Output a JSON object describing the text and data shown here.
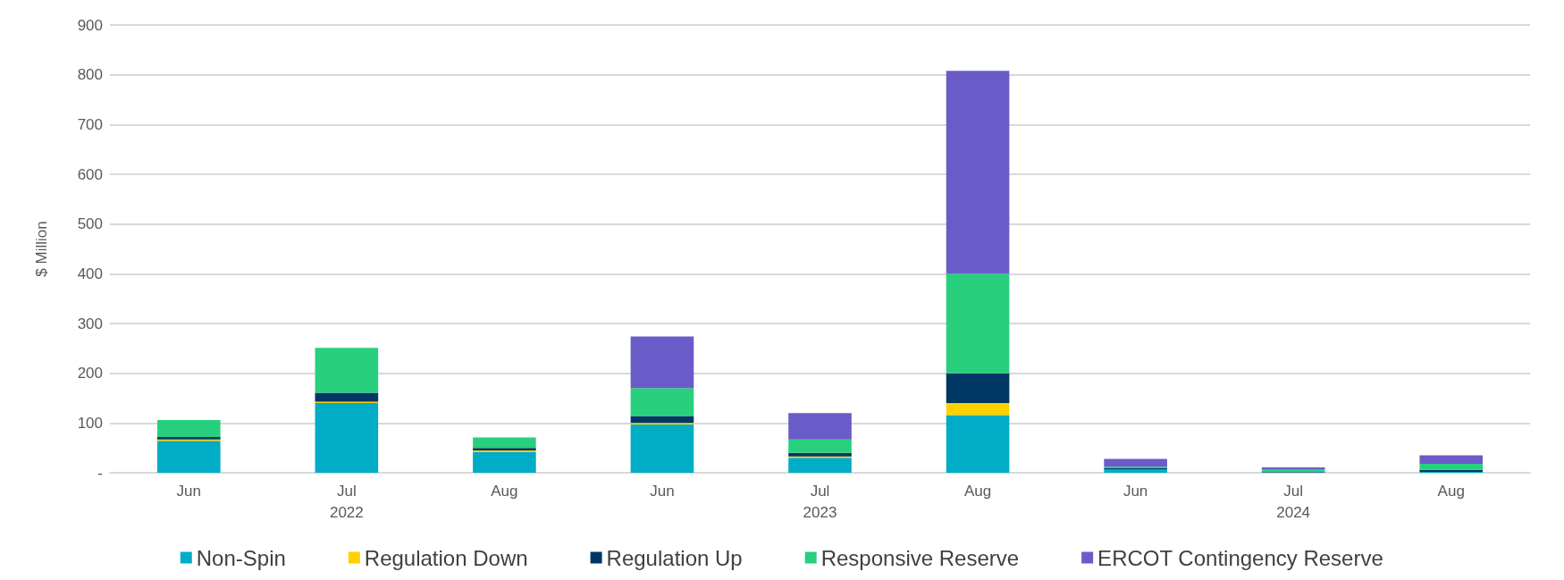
{
  "chart_data": {
    "type": "bar",
    "stacked": true,
    "ylabel": "$ Million",
    "categories": [
      "Jun",
      "Jul\n2022",
      "Aug",
      "Jun",
      "Jul\n2023",
      "Aug",
      "Jun",
      "Jul\n2024",
      "Aug"
    ],
    "series": [
      {
        "name": "Non-Spin",
        "color": "#00acc6",
        "values": [
          64,
          140,
          42,
          97,
          30,
          116,
          7,
          1,
          2
        ]
      },
      {
        "name": "Regulation Down",
        "color": "#ffd100",
        "values": [
          3,
          3,
          3,
          3,
          3,
          24,
          null,
          null,
          null
        ]
      },
      {
        "name": "Regulation Up",
        "color": "#003764",
        "values": [
          5,
          18,
          5,
          14,
          7,
          60,
          2,
          1,
          4
        ]
      },
      {
        "name": "Responsive Reserve",
        "color": "#28d07e",
        "values": [
          34,
          90,
          21,
          56,
          27,
          200,
          3,
          5,
          12
        ]
      },
      {
        "name": "ERCOT Contingency Reserve",
        "color": "#6a5cc8",
        "values": [
          0,
          0,
          0,
          104,
          53,
          408,
          16,
          4,
          17
        ]
      }
    ],
    "ylim": [
      0,
      900
    ],
    "yticks": [
      {
        "value": 0,
        "label": "-"
      },
      100,
      200,
      300,
      400,
      500,
      600,
      700,
      800,
      900
    ],
    "grid": "y",
    "legend": "bottom"
  }
}
